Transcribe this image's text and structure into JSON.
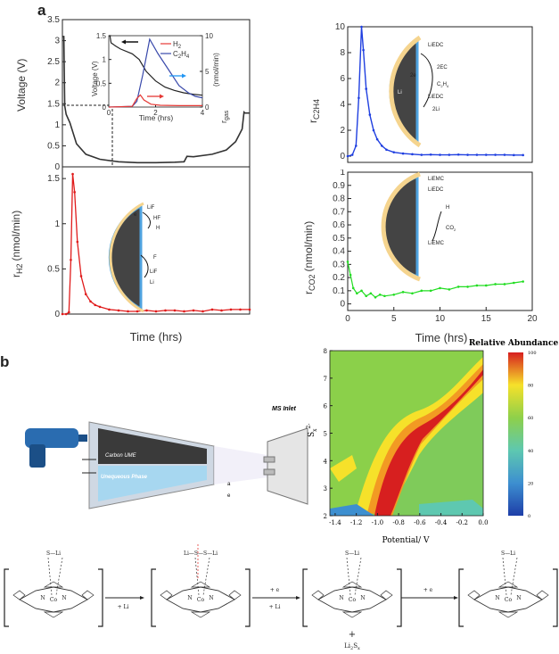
{
  "panels": {
    "a": "a",
    "b": "b"
  },
  "chart_data": [
    {
      "type": "line",
      "id": "voltage",
      "ylabel": "Voltage (V)",
      "xlim": [
        0,
        20
      ],
      "ylim": [
        0,
        3.5
      ],
      "yticks": [
        "0",
        "0.5",
        "1",
        "1.5",
        "2",
        "2.5",
        "3",
        "3.5"
      ],
      "series": [
        {
          "color": "#333333",
          "x": [
            0,
            0.15,
            0.25,
            0.4,
            0.8,
            1.5,
            2.5,
            4,
            6,
            8,
            10,
            12,
            13,
            13.3,
            14,
            16,
            17.5,
            18.5,
            19.2,
            19.4,
            19.5,
            20
          ],
          "y": [
            3.1,
            3.1,
            1.45,
            1.25,
            1.05,
            0.55,
            0.3,
            0.18,
            0.12,
            0.1,
            0.1,
            0.11,
            0.12,
            0.25,
            0.24,
            0.3,
            0.4,
            0.6,
            0.9,
            1.3,
            1.28,
            1.28
          ]
        }
      ],
      "annotations": [
        "dashed box 0–1.5 V, 0–4 h"
      ],
      "inset": {
        "type": "line",
        "xlabel": "Time (hrs)",
        "ylabel": "Voltage (V)",
        "ylabel_right": "r",
        "ylabel_right_sub": "gas",
        "ylabel_right_units": "(nmol/min)",
        "xlim": [
          0,
          4
        ],
        "ylim": [
          0,
          1.5
        ],
        "y2lim": [
          0,
          10
        ],
        "xticks": [
          "0",
          "2",
          "4"
        ],
        "yticks": [
          "0",
          "0.5",
          "1",
          "1.5"
        ],
        "y2ticks": [
          "0",
          "5",
          "10"
        ],
        "legend": [
          {
            "name": "H",
            "sub": "2",
            "color": "#e53935"
          },
          {
            "name": "C",
            "sub": "2",
            "tail": "H",
            "sub2": "4",
            "color": "#3949ab"
          }
        ],
        "series": [
          {
            "name": "voltage",
            "color": "#222222",
            "x": [
              0,
              0.05,
              0.1,
              0.3,
              0.5,
              1,
              1.3,
              1.6,
              2,
              2.4,
              2.8,
              3.2,
              3.6,
              4
            ],
            "y": [
              1.5,
              1.5,
              1.35,
              1.28,
              1.22,
              1.12,
              1.0,
              0.75,
              0.55,
              0.42,
              0.35,
              0.3,
              0.27,
              0.25
            ],
            "axis": "left"
          },
          {
            "name": "C2H4",
            "color": "#3949ab",
            "x": [
              0,
              1,
              1.2,
              1.45,
              1.75,
              2.1,
              2.6,
              3.0,
              3.4,
              3.7,
              4
            ],
            "y": [
              0,
              0.1,
              0.8,
              4.5,
              9.5,
              7.5,
              5.0,
              3.0,
              2.0,
              1.5,
              1.3
            ],
            "axis": "right"
          },
          {
            "name": "H2",
            "color": "#e53935",
            "x": [
              0,
              1.0,
              1.2,
              1.35,
              1.5,
              1.8,
              2.2,
              3,
              4
            ],
            "y": [
              0,
              0.1,
              1.2,
              1.7,
              1.0,
              0.4,
              0.25,
              0.2,
              0.2
            ],
            "axis": "right"
          }
        ]
      }
    },
    {
      "type": "line",
      "id": "c2h4",
      "ylabel": "r",
      "ylabel_sub": "C2H4",
      "xlim": [
        0,
        20
      ],
      "ylim": [
        0,
        10
      ],
      "yticks": [
        "0",
        "2",
        "4",
        "6",
        "8",
        "10"
      ],
      "series": [
        {
          "color": "#1f3fe0",
          "x": [
            0,
            0.5,
            0.9,
            1.2,
            1.5,
            1.7,
            2.0,
            2.4,
            2.8,
            3.2,
            3.7,
            4.2,
            5,
            6,
            7,
            8,
            9,
            10,
            11,
            12,
            13,
            14,
            15,
            16,
            17,
            18,
            19
          ],
          "y": [
            0,
            0.1,
            0.8,
            4.5,
            10,
            8.2,
            5.2,
            3.2,
            2.0,
            1.3,
            0.8,
            0.5,
            0.3,
            0.2,
            0.15,
            0.1,
            0.12,
            0.1,
            0.1,
            0.12,
            0.1,
            0.1,
            0.1,
            0.1,
            0.1,
            0.08,
            0.08
          ]
        }
      ]
    },
    {
      "type": "line",
      "id": "h2",
      "ylabel": "r",
      "ylabel_sub": "H2",
      "ylabel_units": "(nmol/min)",
      "xlabel": "Time (hrs)",
      "xlim": [
        0,
        20
      ],
      "ylim": [
        0,
        1.6
      ],
      "yticks": [
        "0",
        "0.5",
        "1",
        "1.5"
      ],
      "series": [
        {
          "color": "#e01b1b",
          "x": [
            0,
            0.4,
            0.7,
            0.9,
            1.1,
            1.3,
            1.6,
            2.0,
            2.5,
            3,
            3.5,
            4,
            5,
            6,
            7,
            8,
            9,
            10,
            11,
            12,
            13,
            14,
            15,
            16,
            17,
            18,
            19,
            20
          ],
          "y": [
            0,
            0,
            0.02,
            0.6,
            1.55,
            1.35,
            0.8,
            0.42,
            0.22,
            0.14,
            0.1,
            0.08,
            0.05,
            0.04,
            0.03,
            0.03,
            0.04,
            0.03,
            0.04,
            0.04,
            0.03,
            0.04,
            0.03,
            0.05,
            0.04,
            0.05,
            0.05,
            0.05
          ]
        }
      ]
    },
    {
      "type": "line",
      "id": "co2",
      "ylabel": "r",
      "ylabel_sub": "CO2",
      "ylabel_units": "(nmol/min)",
      "xlabel": "Time (hrs)",
      "xlim": [
        0,
        20
      ],
      "ylim": [
        -0.05,
        1.0
      ],
      "xticks": [
        "0",
        "5",
        "10",
        "15",
        "20"
      ],
      "yticks": [
        "0",
        "0.1",
        "0.2",
        "0.3",
        "0.4",
        "0.5",
        "0.6",
        "0.7",
        "0.8",
        "0.9",
        "1"
      ],
      "series": [
        {
          "color": "#22dd22",
          "x": [
            0,
            0.3,
            0.6,
            1,
            1.5,
            2,
            2.5,
            3,
            3.5,
            4,
            5,
            6,
            7,
            8,
            9,
            10,
            11,
            12,
            13,
            14,
            15,
            16,
            17,
            18,
            19
          ],
          "y": [
            0.32,
            0.22,
            0.12,
            0.08,
            0.1,
            0.06,
            0.08,
            0.05,
            0.07,
            0.06,
            0.07,
            0.09,
            0.08,
            0.1,
            0.1,
            0.12,
            0.11,
            0.13,
            0.13,
            0.14,
            0.14,
            0.15,
            0.15,
            0.16,
            0.17
          ]
        }
      ]
    },
    {
      "type": "heatmap",
      "id": "abundance",
      "title": "Relative Abundance",
      "xlabel": "Potential/ V",
      "ylabel": "S",
      "ylabel_sub": "x",
      "ylabel_sup": "2-",
      "xlim": [
        -1.45,
        0.0
      ],
      "ylim": [
        2,
        8
      ],
      "xticks": [
        "-1.4",
        "-1.2",
        "-1.0",
        "-0.8",
        "-0.6",
        "-0.4",
        "-0.2",
        "0.0"
      ],
      "yticks": [
        "2",
        "3",
        "4",
        "5",
        "6",
        "7",
        "8"
      ],
      "colorbar_ticks": [
        "0",
        "20",
        "40",
        "60",
        "80",
        "100"
      ],
      "colorbar_range": [
        0,
        100
      ]
    }
  ],
  "curves": {
    "h2": {
      "labels": [
        "LiF",
        "HF",
        "H",
        "e",
        "Li",
        "F",
        "LiF",
        "Li"
      ]
    },
    "c2h4": {
      "labels": [
        "LiEDC",
        "2EC",
        "2e",
        "C",
        "H",
        "Li",
        "LiEDC",
        "2Li"
      ]
    },
    "co2": {
      "labels": [
        "LiEMC",
        "LiEDC",
        "H",
        "CO",
        "LiEMC"
      ]
    }
  },
  "b_schematic": {
    "electrode_label": "Carbon UME",
    "phase_label": "Unequeous Phase",
    "ms_label": "MS Inlet",
    "legend": [
      "a",
      "e"
    ]
  },
  "reaction": {
    "steps": [
      "+ Li",
      "+ e",
      "+ Li",
      "+ e"
    ],
    "complex_labels": [
      "S",
      "Li",
      "Co",
      "N"
    ],
    "product": "+",
    "product2": "Li",
    "species": [
      "S—Li",
      "Li—S—S—Li",
      "S—Li",
      "S—Li"
    ]
  }
}
